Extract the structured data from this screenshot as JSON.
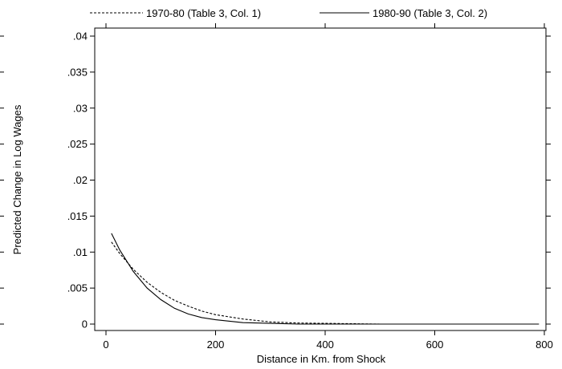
{
  "chart_data": {
    "type": "line",
    "title": "",
    "xlabel": "Distance in Km. from Shock",
    "ylabel": "Predicted Change in Log Wages",
    "xlim": [
      0,
      800
    ],
    "ylim": [
      0,
      0.04
    ],
    "x_ticks": [
      0,
      200,
      400,
      600,
      800
    ],
    "x_tick_labels": [
      "0",
      "200",
      "400",
      "600",
      "800"
    ],
    "y_ticks": [
      0,
      0.005,
      0.01,
      0.015,
      0.02,
      0.025,
      0.03,
      0.035,
      0.04
    ],
    "y_tick_labels": [
      "0",
      ".005",
      ".01",
      ".015",
      ".02",
      ".025",
      ".03",
      ".035",
      ".04"
    ],
    "grid": false,
    "legend_position": "top",
    "series": [
      {
        "name": "1970-80 (Table 3, Col. 1)",
        "line_style": "dashed",
        "color": "#000000",
        "x": [
          10,
          25,
          50,
          75,
          100,
          125,
          150,
          175,
          200,
          250,
          300,
          350,
          400,
          500,
          600,
          700,
          790
        ],
        "y": [
          0.0114,
          0.0098,
          0.0076,
          0.0058,
          0.0044,
          0.0033,
          0.0025,
          0.0018,
          0.0013,
          0.0007,
          0.0003,
          0.00015,
          0.0001,
          0.0,
          0.0,
          0.0,
          0.0
        ]
      },
      {
        "name": "1980-90 (Table 3, Col. 2)",
        "line_style": "solid",
        "color": "#000000",
        "x": [
          10,
          25,
          50,
          75,
          100,
          125,
          150,
          175,
          200,
          250,
          300,
          350,
          400,
          500,
          600,
          700,
          790
        ],
        "y": [
          0.0126,
          0.0103,
          0.0073,
          0.005,
          0.0034,
          0.0022,
          0.0014,
          0.0009,
          0.0006,
          0.0002,
          0.0001,
          0.0,
          0.0,
          0.0,
          0.0,
          0.0,
          0.0
        ]
      }
    ]
  }
}
